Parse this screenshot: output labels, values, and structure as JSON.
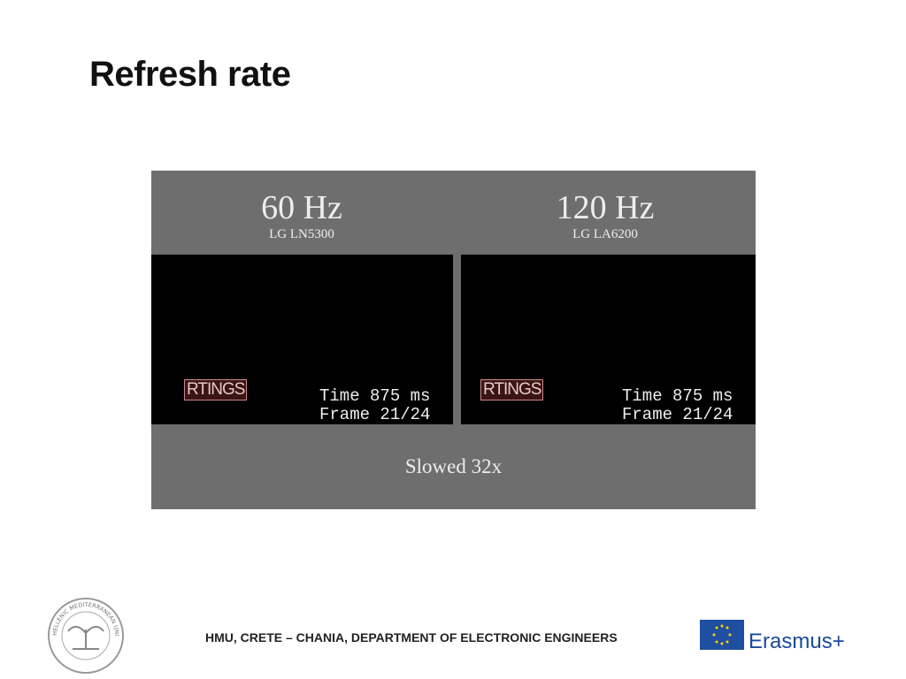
{
  "slide": {
    "title": "Refresh rate",
    "video": {
      "panels": [
        {
          "heading": "60 Hz",
          "model": "LG LN5300",
          "logo": "RTINGS",
          "time": "Time 875 ms",
          "frame": "Frame 21/24"
        },
        {
          "heading": "120 Hz",
          "model": "LG LA6200",
          "logo": "RTINGS",
          "time": "Time 875 ms",
          "frame": "Frame 21/24"
        }
      ],
      "caption": "Slowed 32x"
    },
    "footer": {
      "seal": "HELLENIC MEDITERRANEAN UNIVERSITY",
      "text": "HMU, CRETE – CHANIA, DEPARTMENT OF ELECTRONIC ENGINEERS",
      "program": "Erasmus+"
    }
  }
}
